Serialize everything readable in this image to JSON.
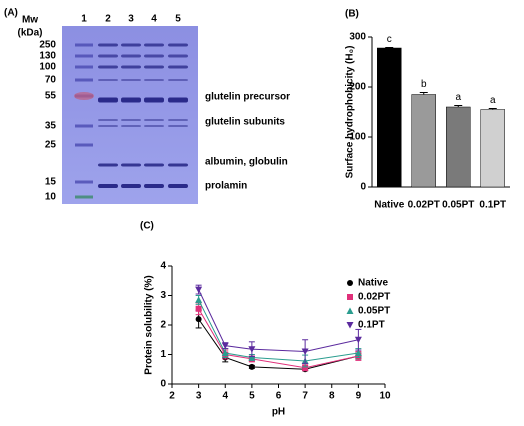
{
  "gel": {
    "panel_label": "(A)",
    "mw_label": [
      "Mw",
      "(kDa)"
    ],
    "lanes": [
      "1",
      "2",
      "3",
      "4",
      "5"
    ],
    "markers": [
      "250",
      "130",
      "100",
      "70",
      "55",
      "35",
      "25",
      "15",
      "10"
    ],
    "band_labels": [
      "glutelin precursor",
      "glutelin subunits",
      "albumin, globulin",
      "prolamin"
    ]
  },
  "chart_data": [
    {
      "type": "bar",
      "panel_label": "(B)",
      "ylabel": "Surface hydrophobicity (H₀)",
      "categories": [
        "Native",
        "0.02PT",
        "0.05PT",
        "0.1PT"
      ],
      "values": [
        278,
        185,
        160,
        155
      ],
      "errors": [
        1,
        4,
        3,
        2
      ],
      "colors": [
        "#000000",
        "#9a9a9a",
        "#7a7a7a",
        "#d0d0d0"
      ],
      "annotations": [
        "c",
        "b",
        "a",
        "a"
      ],
      "ylim": [
        0,
        300
      ],
      "yticks": [
        0,
        100,
        200,
        300
      ]
    },
    {
      "type": "line",
      "panel_label": "(C)",
      "xlabel": "pH",
      "ylabel": "Protein solubility (%)",
      "x": [
        3,
        4,
        5,
        7,
        9
      ],
      "series": [
        {
          "name": "Native",
          "color": "#000000",
          "marker": "circle",
          "values": [
            2.2,
            0.9,
            0.58,
            0.5,
            0.95
          ],
          "errors": [
            0.3,
            0.15,
            0.05,
            0.05,
            0.1
          ]
        },
        {
          "name": "0.02PT",
          "color": "#e0307a",
          "marker": "square",
          "values": [
            2.55,
            1.0,
            0.85,
            0.55,
            0.95
          ],
          "errors": [
            0.2,
            0.15,
            0.1,
            0.1,
            0.15
          ]
        },
        {
          "name": "0.05PT",
          "color": "#2a9d8f",
          "marker": "triangle",
          "values": [
            2.85,
            1.05,
            0.9,
            0.78,
            1.05
          ],
          "errors": [
            0.15,
            0.15,
            0.1,
            0.2,
            0.15
          ]
        },
        {
          "name": "0.1PT",
          "color": "#5b2a9e",
          "marker": "triangle-down",
          "values": [
            3.2,
            1.3,
            1.18,
            1.1,
            1.5
          ],
          "errors": [
            0.15,
            0.1,
            0.25,
            0.4,
            0.35
          ]
        }
      ],
      "xlim": [
        2,
        10
      ],
      "xticks": [
        2,
        3,
        4,
        5,
        6,
        7,
        8,
        9,
        10
      ],
      "ylim": [
        0,
        4
      ],
      "yticks": [
        0,
        1,
        2,
        3,
        4
      ],
      "legend": "upper right"
    }
  ]
}
